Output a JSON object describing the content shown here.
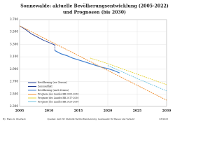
{
  "chart_data": {
    "type": "line",
    "title": "Sonnewalde: aktuelle Bevölkerungsentwicklung (2005-2022)",
    "subtitle": "und Prognosen (bis 2030)",
    "xlim": [
      2005,
      2030
    ],
    "xticks": [
      2005,
      2010,
      2015,
      2020,
      2025,
      2030
    ],
    "ylim": [
      2300,
      3700
    ],
    "yticks": [
      {
        "value": 2300,
        "label": "2.300"
      },
      {
        "value": 2500,
        "label": "2.500"
      },
      {
        "value": 2700,
        "label": "2.700"
      },
      {
        "value": 2900,
        "label": "2.900"
      },
      {
        "value": 3100,
        "label": "3.100"
      },
      {
        "value": 3300,
        "label": "3.300"
      },
      {
        "value": 3500,
        "label": "3.500"
      },
      {
        "value": 3700,
        "label": "3.700"
      }
    ],
    "grid": true,
    "legend": "lower left",
    "series": [
      {
        "name": "Bevölkerung (vor Zensus)",
        "color": "#1f3a93",
        "x": [
          2005,
          2006,
          2007,
          2008,
          2009,
          2010,
          2011
        ],
        "values": [
          3600,
          3540,
          3470,
          3420,
          3370,
          3330,
          3290
        ]
      },
      {
        "name": "Zensuseffekt",
        "color": "#1f3a93",
        "dash": true,
        "x": [
          2011,
          2011
        ],
        "values": [
          3290,
          3200
        ]
      },
      {
        "name": "Bevölkerung (nach Zensus)",
        "color": "#3f7fd0",
        "x": [
          2011,
          2012,
          2013,
          2014,
          2015,
          2016,
          2017,
          2018,
          2019,
          2020,
          2021,
          2022
        ],
        "values": [
          3200,
          3150,
          3120,
          3080,
          3050,
          3020,
          2990,
          2960,
          2930,
          2910,
          2880,
          2840
        ]
      },
      {
        "name": "Prognose des Landes BB 2005-2030",
        "color": "#f08c2a",
        "x": [
          2005,
          2010,
          2015,
          2020,
          2025,
          2030
        ],
        "values": [
          3600,
          3360,
          3120,
          2880,
          2640,
          2400
        ]
      },
      {
        "name": "Prognose des Landes BB 2017-2030",
        "color": "#e6d33a",
        "x": [
          2017,
          2020,
          2025,
          2030
        ],
        "values": [
          3080,
          2990,
          2820,
          2650
        ]
      },
      {
        "name": "Prognose des Landes BB 2020-2030",
        "color": "#6fc3e0",
        "x": [
          2020,
          2025,
          2030
        ],
        "values": [
          2960,
          2750,
          2550
        ]
      }
    ],
    "footer_left": "By: Hans G. Oberlack",
    "footer_center": "Quellen: Amt für Statistik Berlin-Brandenburg, Landesamt für Bauen und Verkehr",
    "footer_right": "03/2023"
  }
}
